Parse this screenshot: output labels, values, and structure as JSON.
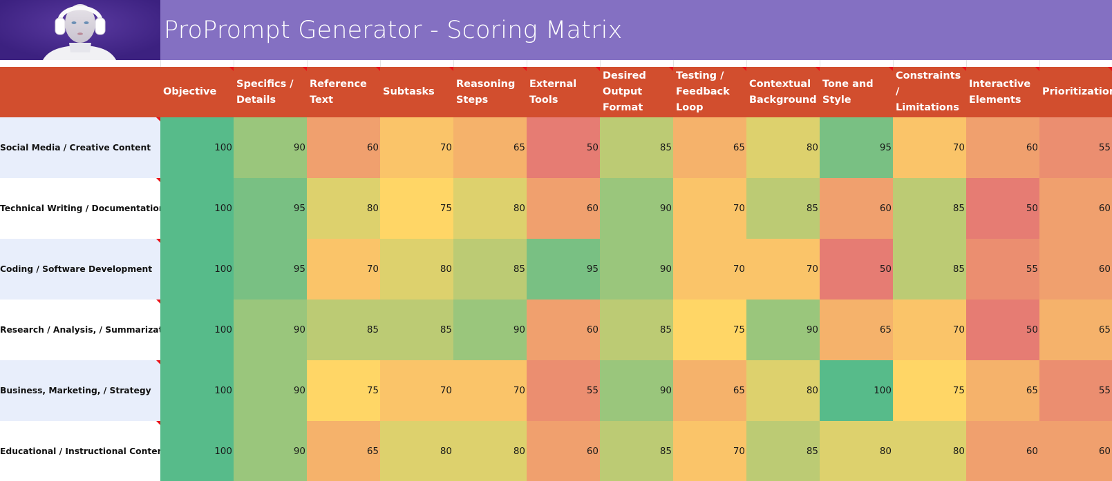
{
  "header": {
    "title": "ProPrompt Generator - Scoring Matrix",
    "logo": "headphones-robot-avatar-image"
  },
  "columns": [
    {
      "label": "Objective"
    },
    {
      "label": "Specifics / Details"
    },
    {
      "label": "Reference Text"
    },
    {
      "label": "Subtasks"
    },
    {
      "label": "Reasoning Steps"
    },
    {
      "label": "External Tools"
    },
    {
      "label": "Desired Output Format"
    },
    {
      "label": "Testing / Feedback Loop"
    },
    {
      "label": "Contextual Background"
    },
    {
      "label": "Tone and Style"
    },
    {
      "label": "Constraints / Limitations"
    },
    {
      "label": "Interactive Elements"
    },
    {
      "label": "Prioritization"
    }
  ],
  "rows": [
    {
      "label": "Social Media / Creative Content",
      "values": [
        "100",
        "90",
        "60",
        "70",
        "65",
        "50",
        "85",
        "65",
        "80",
        "95",
        "70",
        "60",
        "55"
      ]
    },
    {
      "label": "Technical Writing / Documentation",
      "values": [
        "100",
        "95",
        "80",
        "75",
        "80",
        "60",
        "90",
        "70",
        "85",
        "60",
        "85",
        "50",
        "60"
      ]
    },
    {
      "label": "Coding / Software Development",
      "values": [
        "100",
        "95",
        "70",
        "80",
        "85",
        "95",
        "90",
        "70",
        "70",
        "50",
        "85",
        "55",
        "60"
      ]
    },
    {
      "label": "Research / Analysis, / Summarization",
      "values": [
        "100",
        "90",
        "85",
        "85",
        "90",
        "60",
        "85",
        "75",
        "90",
        "65",
        "70",
        "50",
        "65"
      ]
    },
    {
      "label": "Business, Marketing, / Strategy",
      "values": [
        "100",
        "90",
        "75",
        "70",
        "70",
        "55",
        "90",
        "65",
        "80",
        "100",
        "75",
        "65",
        "55"
      ]
    },
    {
      "label": "Educational / Instructional Content",
      "values": [
        "100",
        "90",
        "65",
        "80",
        "80",
        "60",
        "85",
        "70",
        "85",
        "80",
        "80",
        "60",
        "60"
      ]
    }
  ],
  "colors": {
    "title_band": "#8470c2",
    "logo_background": "#432687",
    "header_row": "#d24e2e",
    "row_label_alt": "#e8eefb",
    "comment_indicator": "#e8141b",
    "scale_50": "#e67c73",
    "scale_100": "#57bb8a",
    "scale_mid_yellow": "#ffd666"
  }
}
